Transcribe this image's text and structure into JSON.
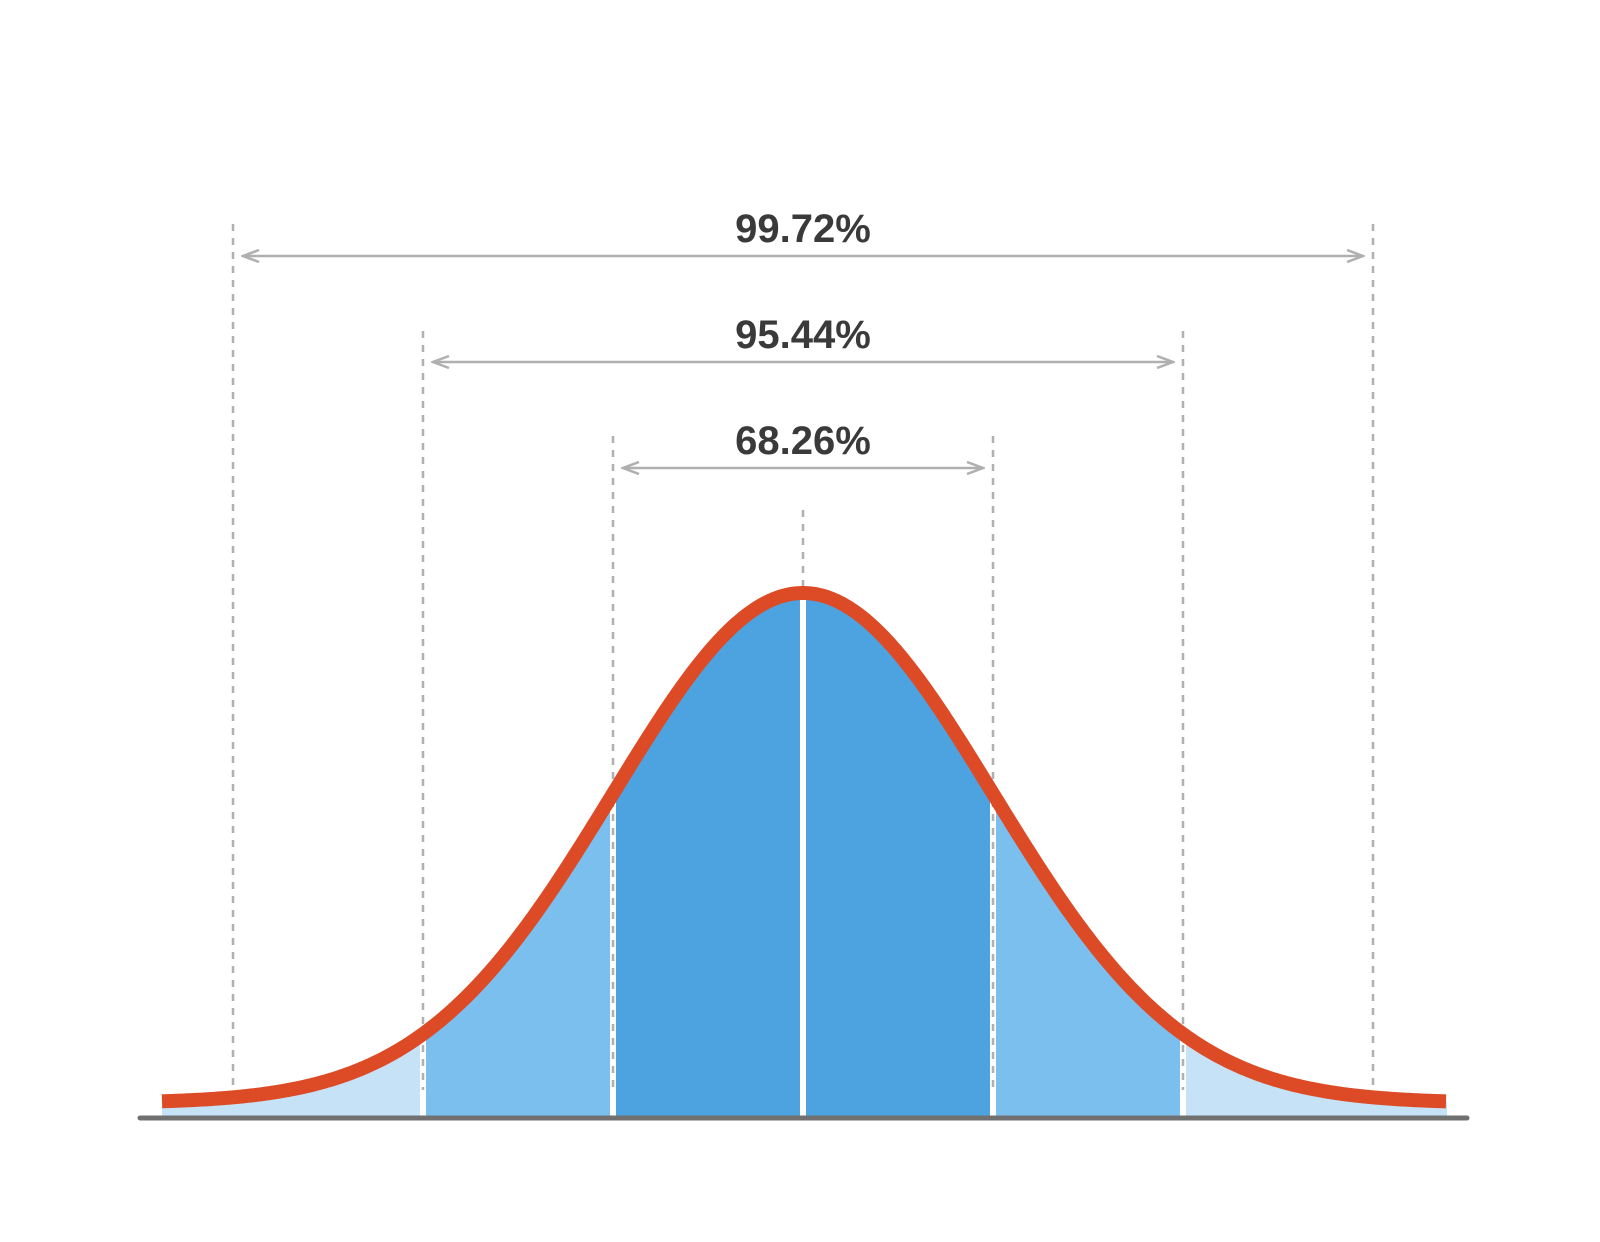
{
  "spans": [
    {
      "label": "99.72%"
    },
    {
      "label": "95.44%"
    },
    {
      "label": "68.26%"
    }
  ]
}
